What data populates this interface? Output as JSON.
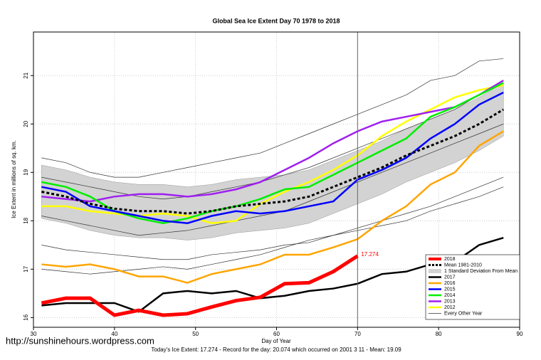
{
  "chart_data": {
    "type": "line",
    "title": "Global Sea Ice Extent Day 70 1978 to 2018",
    "xlabel": "Day of Year",
    "ylabel": "Ice Extent in millions of sq. km.",
    "footer": "Today's Ice Extent: 17.274  - Record for the day: 20.074 which occurred on 2001 3 11  - Mean: 19.09",
    "watermark": "http://sunshinehours.wordpress.com",
    "x": [
      31,
      34,
      37,
      40,
      43,
      46,
      49,
      52,
      55,
      58,
      61,
      64,
      67,
      70,
      73,
      76,
      79,
      82,
      85,
      88
    ],
    "xlim": [
      30,
      90
    ],
    "xticks": [
      30,
      40,
      50,
      60,
      70,
      80,
      90
    ],
    "ylim": [
      15.8,
      21.9
    ],
    "yticks": [
      16,
      17,
      18,
      19,
      20,
      21
    ],
    "grid": true,
    "vline_x": 70,
    "series": [
      {
        "name": "2018",
        "color": "#ff0000",
        "width": 5,
        "values": [
          16.3,
          16.4,
          16.4,
          16.05,
          16.15,
          16.05,
          16.08,
          16.22,
          16.35,
          16.42,
          16.7,
          16.72,
          16.95,
          17.274,
          null,
          null,
          null,
          null,
          null,
          null
        ],
        "end_label": true
      },
      {
        "name": "Mean 1981-2010",
        "color": "#000000",
        "width": 3,
        "dashed": true,
        "values": [
          18.6,
          18.5,
          18.35,
          18.25,
          18.2,
          18.2,
          18.15,
          18.2,
          18.3,
          18.35,
          18.4,
          18.5,
          18.7,
          18.9,
          19.1,
          19.35,
          19.55,
          19.75,
          20.0,
          20.3
        ]
      },
      {
        "name": "2017",
        "color": "#000000",
        "width": 2.5,
        "values": [
          16.25,
          16.3,
          16.3,
          16.3,
          16.12,
          16.5,
          16.55,
          16.5,
          16.55,
          16.4,
          16.45,
          16.55,
          16.6,
          16.7,
          16.9,
          16.95,
          17.1,
          17.15,
          17.5,
          17.65
        ]
      },
      {
        "name": "2016",
        "color": "#ffa500",
        "width": 2.5,
        "values": [
          17.1,
          17.05,
          17.1,
          17.0,
          16.85,
          16.85,
          16.72,
          16.9,
          17.0,
          17.1,
          17.3,
          17.3,
          17.45,
          17.62,
          18.0,
          18.3,
          18.75,
          19.0,
          19.55,
          19.85
        ]
      },
      {
        "name": "2015",
        "color": "#0000ff",
        "width": 2.5,
        "values": [
          18.7,
          18.6,
          18.3,
          18.2,
          18.1,
          18.0,
          17.95,
          18.1,
          18.2,
          18.15,
          18.2,
          18.3,
          18.4,
          18.85,
          19.05,
          19.3,
          19.7,
          20.0,
          20.4,
          20.65
        ]
      },
      {
        "name": "2014",
        "color": "#00ee00",
        "width": 2.5,
        "values": [
          18.8,
          18.7,
          18.5,
          18.2,
          18.05,
          17.95,
          18.05,
          18.2,
          18.3,
          18.45,
          18.65,
          18.7,
          18.95,
          19.2,
          19.45,
          19.7,
          20.15,
          20.35,
          20.6,
          20.85
        ]
      },
      {
        "name": "2013",
        "color": "#a020f0",
        "width": 2.5,
        "values": [
          18.5,
          18.45,
          18.4,
          18.5,
          18.55,
          18.55,
          18.5,
          18.55,
          18.65,
          18.8,
          19.05,
          19.3,
          19.6,
          19.85,
          20.05,
          20.15,
          20.25,
          20.35,
          20.6,
          20.9
        ]
      },
      {
        "name": "2012",
        "color": "#ffff00",
        "width": 2.5,
        "values": [
          18.3,
          18.3,
          18.2,
          18.15,
          18.1,
          18.15,
          18.1,
          17.95,
          18.0,
          18.35,
          18.6,
          18.8,
          19.05,
          19.35,
          19.75,
          20.05,
          20.3,
          20.55,
          20.7,
          20.8
        ]
      }
    ],
    "band": {
      "name": "1 Standard Deviation From Mean",
      "color": "#d3d3d3",
      "upper": [
        19.15,
        19.05,
        18.9,
        18.8,
        18.75,
        18.75,
        18.7,
        18.75,
        18.85,
        18.9,
        18.95,
        19.05,
        19.25,
        19.45,
        19.65,
        19.9,
        20.1,
        20.3,
        20.55,
        20.85
      ],
      "lower": [
        18.05,
        17.95,
        17.8,
        17.7,
        17.65,
        17.65,
        17.6,
        17.65,
        17.75,
        17.8,
        17.85,
        17.95,
        18.15,
        18.35,
        18.55,
        18.8,
        19.0,
        19.2,
        19.45,
        19.75
      ]
    },
    "other_years": {
      "name": "Every Other Year",
      "color": "#333333",
      "values": [
        [
          19.3,
          19.2,
          19.0,
          18.9,
          18.9,
          19.0,
          19.1,
          19.2,
          19.3,
          19.4,
          19.6,
          19.8,
          20.0,
          20.2,
          20.4,
          20.6,
          20.9,
          21.0,
          21.3,
          21.35
        ],
        [
          17.5,
          17.4,
          17.35,
          17.3,
          17.25,
          17.2,
          17.2,
          17.3,
          17.35,
          17.4,
          17.5,
          17.55,
          17.7,
          17.8,
          17.9,
          18.0,
          18.2,
          18.35,
          18.5,
          18.7
        ],
        [
          18.1,
          18.0,
          17.9,
          17.8,
          17.7,
          17.75,
          17.8,
          17.9,
          18.0,
          18.1,
          18.2,
          18.4,
          18.6,
          18.8,
          19.0,
          19.2,
          19.4,
          19.6,
          19.8,
          20.0
        ],
        [
          18.9,
          18.8,
          18.7,
          18.6,
          18.5,
          18.45,
          18.5,
          18.6,
          18.7,
          18.8,
          18.95,
          19.1,
          19.3,
          19.5,
          19.7,
          19.9,
          20.1,
          20.3,
          20.6,
          20.9
        ],
        [
          17.0,
          16.95,
          16.9,
          16.95,
          17.0,
          17.05,
          17.0,
          17.1,
          17.2,
          17.3,
          17.45,
          17.6,
          17.7,
          17.85,
          18.0,
          18.15,
          18.3,
          18.5,
          18.7,
          18.9
        ]
      ]
    }
  }
}
